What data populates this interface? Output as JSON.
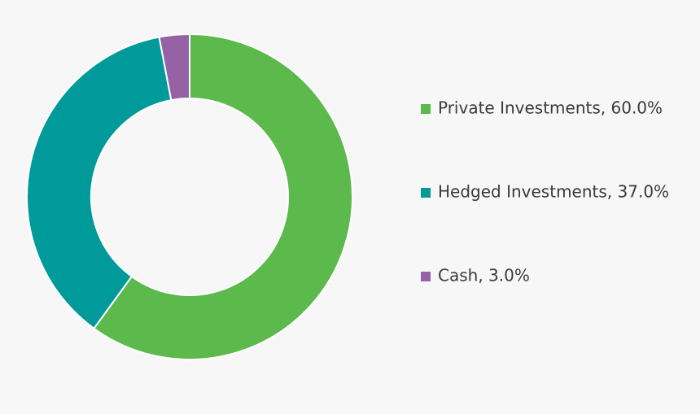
{
  "chart_data": {
    "type": "donut",
    "categories": [
      "Private Investments, 60.0%",
      "Hedged Investments, 37.0%",
      "Cash, 3.0%"
    ],
    "values": [
      60,
      37,
      3
    ],
    "colors": [
      "#5cb94b",
      "#009a9a",
      "#9562a6"
    ],
    "legend": "right"
  }
}
